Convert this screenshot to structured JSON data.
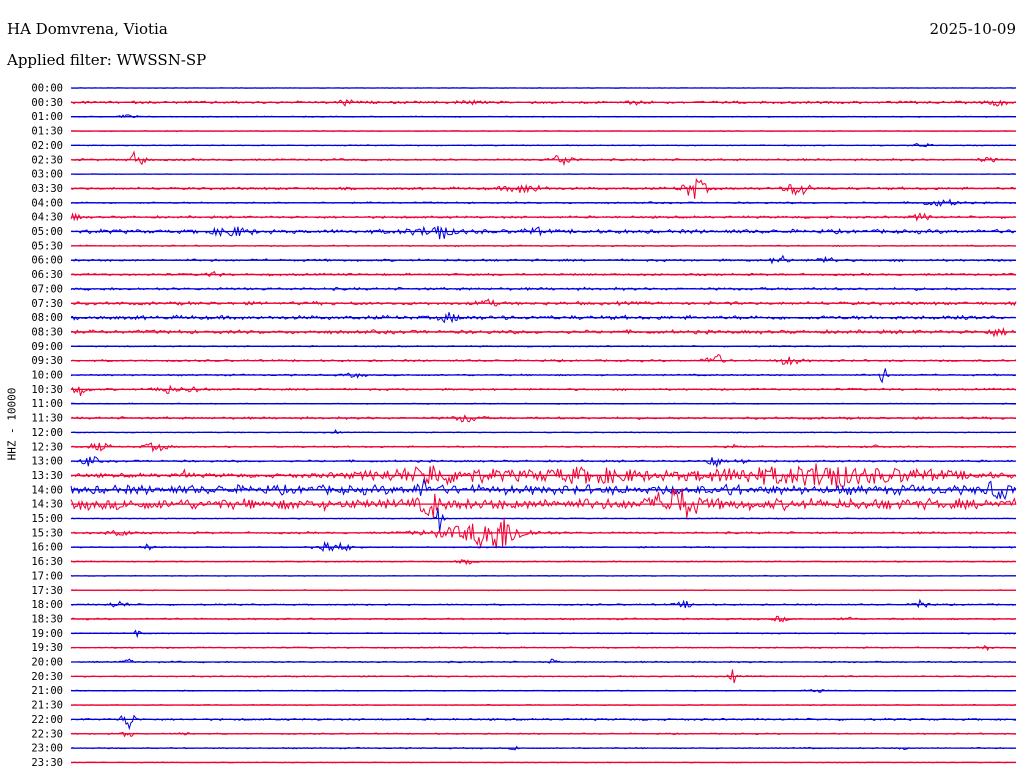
{
  "header": {
    "station": "HA Domvrena, Viotia",
    "date": "2025-10-09",
    "filter": "Applied filter: WWSSN-SP"
  },
  "axis": {
    "ylabel": "HHZ - 10000"
  },
  "colors": {
    "even": "#0000dd",
    "odd": "#ee0033"
  },
  "chart_data": {
    "type": "line",
    "description_of_marks": "helicorder: one 30-minute trace per row, alternating blue/red",
    "ylabel": "HHZ - 10000",
    "rows": [
      {
        "label": "00:00",
        "noise": 0.4,
        "events": []
      },
      {
        "label": "00:30",
        "noise": 1.5,
        "events": [
          [
            0.29,
            4,
            0.006
          ],
          [
            0.42,
            2,
            0.01
          ],
          [
            0.6,
            2,
            0.01
          ],
          [
            0.98,
            3,
            0.01
          ]
        ]
      },
      {
        "label": "01:00",
        "noise": 0.6,
        "events": [
          [
            0.06,
            2,
            0.01
          ]
        ]
      },
      {
        "label": "01:30",
        "noise": 0.5,
        "events": []
      },
      {
        "label": "02:00",
        "noise": 0.6,
        "events": [
          [
            0.9,
            2,
            0.01
          ]
        ]
      },
      {
        "label": "02:30",
        "noise": 1.2,
        "events": [
          [
            0.07,
            8,
            0.008
          ],
          [
            0.52,
            6,
            0.01
          ],
          [
            0.97,
            2,
            0.01
          ]
        ]
      },
      {
        "label": "03:00",
        "noise": 0.4,
        "events": []
      },
      {
        "label": "03:30",
        "noise": 1.5,
        "events": [
          [
            0.48,
            4,
            0.02
          ],
          [
            0.66,
            10,
            0.012
          ],
          [
            0.77,
            7,
            0.012
          ]
        ]
      },
      {
        "label": "04:00",
        "noise": 1.0,
        "events": [
          [
            0.92,
            3,
            0.02
          ]
        ]
      },
      {
        "label": "04:30",
        "noise": 1.4,
        "events": [
          [
            0.0,
            3,
            0.01
          ],
          [
            0.9,
            3,
            0.01
          ]
        ]
      },
      {
        "label": "05:00",
        "noise": 2.4,
        "events": [
          [
            0.17,
            4,
            0.02
          ],
          [
            0.38,
            3,
            0.03
          ],
          [
            0.39,
            8,
            0.006
          ],
          [
            0.49,
            3,
            0.01
          ]
        ]
      },
      {
        "label": "05:30",
        "noise": 0.8,
        "events": []
      },
      {
        "label": "06:00",
        "noise": 1.4,
        "events": [
          [
            0.75,
            5,
            0.008
          ],
          [
            0.8,
            3,
            0.01
          ]
        ]
      },
      {
        "label": "06:30",
        "noise": 1.3,
        "events": [
          [
            0.15,
            2,
            0.01
          ]
        ]
      },
      {
        "label": "07:00",
        "noise": 1.6,
        "events": []
      },
      {
        "label": "07:30",
        "noise": 2.0,
        "events": [
          [
            0.44,
            3,
            0.01
          ]
        ]
      },
      {
        "label": "08:00",
        "noise": 2.4,
        "events": [
          [
            0.4,
            4,
            0.01
          ],
          [
            0.95,
            3,
            0.01
          ]
        ]
      },
      {
        "label": "08:30",
        "noise": 2.2,
        "events": [
          [
            0.98,
            3,
            0.01
          ]
        ]
      },
      {
        "label": "09:00",
        "noise": 0.8,
        "events": []
      },
      {
        "label": "09:30",
        "noise": 1.2,
        "events": [
          [
            0.68,
            9,
            0.008
          ],
          [
            0.76,
            4,
            0.012
          ]
        ]
      },
      {
        "label": "10:00",
        "noise": 1.0,
        "events": [
          [
            0.3,
            2,
            0.01
          ],
          [
            0.86,
            9,
            0.004
          ]
        ]
      },
      {
        "label": "10:30",
        "noise": 1.2,
        "events": [
          [
            0.01,
            6,
            0.008
          ],
          [
            0.1,
            4,
            0.012
          ],
          [
            0.13,
            3,
            0.01
          ]
        ]
      },
      {
        "label": "11:00",
        "noise": 0.6,
        "events": []
      },
      {
        "label": "11:30",
        "noise": 1.4,
        "events": [
          [
            0.42,
            4,
            0.012
          ]
        ]
      },
      {
        "label": "12:00",
        "noise": 0.6,
        "events": [
          [
            0.28,
            3,
            0.003
          ]
        ]
      },
      {
        "label": "12:30",
        "noise": 1.0,
        "events": [
          [
            0.03,
            4,
            0.01
          ],
          [
            0.09,
            4,
            0.012
          ],
          [
            0.7,
            5,
            0.006
          ],
          [
            0.85,
            2,
            0.006
          ]
        ]
      },
      {
        "label": "13:00",
        "noise": 1.2,
        "events": [
          [
            0.02,
            5,
            0.008
          ],
          [
            0.68,
            6,
            0.008
          ],
          [
            0.71,
            3,
            0.006
          ]
        ]
      },
      {
        "label": "13:30",
        "noise": 2.5,
        "events": [
          [
            0.12,
            8,
            0.003
          ],
          [
            0.38,
            12,
            0.004
          ],
          [
            0.39,
            7,
            0.08
          ],
          [
            0.55,
            7,
            0.06
          ],
          [
            0.72,
            6,
            0.08
          ],
          [
            0.8,
            7,
            0.02
          ],
          [
            0.85,
            6,
            0.1
          ]
        ]
      },
      {
        "label": "14:00",
        "noise": 5.5,
        "events": [
          [
            0.37,
            10,
            0.005
          ],
          [
            0.7,
            6,
            0.005
          ],
          [
            0.98,
            8,
            0.01
          ]
        ]
      },
      {
        "label": "14:30",
        "noise": 6.5,
        "events": [
          [
            0.38,
            12,
            0.008
          ],
          [
            0.64,
            15,
            0.02
          ]
        ]
      },
      {
        "label": "15:00",
        "noise": 0.6,
        "events": [
          [
            0.39,
            22,
            0.003
          ]
        ]
      },
      {
        "label": "15:30",
        "noise": 1.2,
        "events": [
          [
            0.05,
            4,
            0.01
          ],
          [
            0.45,
            14,
            0.02
          ],
          [
            0.43,
            7,
            0.05
          ]
        ]
      },
      {
        "label": "16:00",
        "noise": 0.8,
        "events": [
          [
            0.08,
            3,
            0.006
          ],
          [
            0.27,
            6,
            0.012
          ],
          [
            0.29,
            3,
            0.01
          ]
        ]
      },
      {
        "label": "16:30",
        "noise": 0.7,
        "events": [
          [
            0.42,
            2,
            0.01
          ]
        ]
      },
      {
        "label": "17:00",
        "noise": 0.5,
        "events": []
      },
      {
        "label": "17:30",
        "noise": 0.5,
        "events": []
      },
      {
        "label": "18:00",
        "noise": 0.9,
        "events": [
          [
            0.05,
            3,
            0.01
          ],
          [
            0.65,
            3,
            0.01
          ],
          [
            0.9,
            7,
            0.006
          ]
        ]
      },
      {
        "label": "18:30",
        "noise": 1.0,
        "events": [
          [
            0.75,
            3,
            0.006
          ],
          [
            0.82,
            3,
            0.006
          ]
        ]
      },
      {
        "label": "19:00",
        "noise": 0.7,
        "events": [
          [
            0.07,
            3,
            0.003
          ]
        ]
      },
      {
        "label": "19:30",
        "noise": 0.8,
        "events": [
          [
            0.97,
            3,
            0.004
          ]
        ]
      },
      {
        "label": "20:00",
        "noise": 0.9,
        "events": [
          [
            0.06,
            4,
            0.004
          ],
          [
            0.51,
            4,
            0.003
          ]
        ]
      },
      {
        "label": "20:30",
        "noise": 0.8,
        "events": [
          [
            0.7,
            7,
            0.004
          ]
        ]
      },
      {
        "label": "21:00",
        "noise": 0.6,
        "events": [
          [
            0.79,
            2,
            0.01
          ]
        ]
      },
      {
        "label": "21:30",
        "noise": 0.6,
        "events": []
      },
      {
        "label": "22:00",
        "noise": 1.2,
        "events": [
          [
            0.06,
            12,
            0.006
          ]
        ]
      },
      {
        "label": "22:30",
        "noise": 0.8,
        "events": [
          [
            0.06,
            3,
            0.006
          ],
          [
            0.12,
            2,
            0.006
          ]
        ]
      },
      {
        "label": "23:00",
        "noise": 0.8,
        "events": [
          [
            0.47,
            2,
            0.004
          ],
          [
            0.88,
            2,
            0.004
          ]
        ]
      },
      {
        "label": "23:30",
        "noise": 0.5,
        "events": []
      }
    ]
  }
}
